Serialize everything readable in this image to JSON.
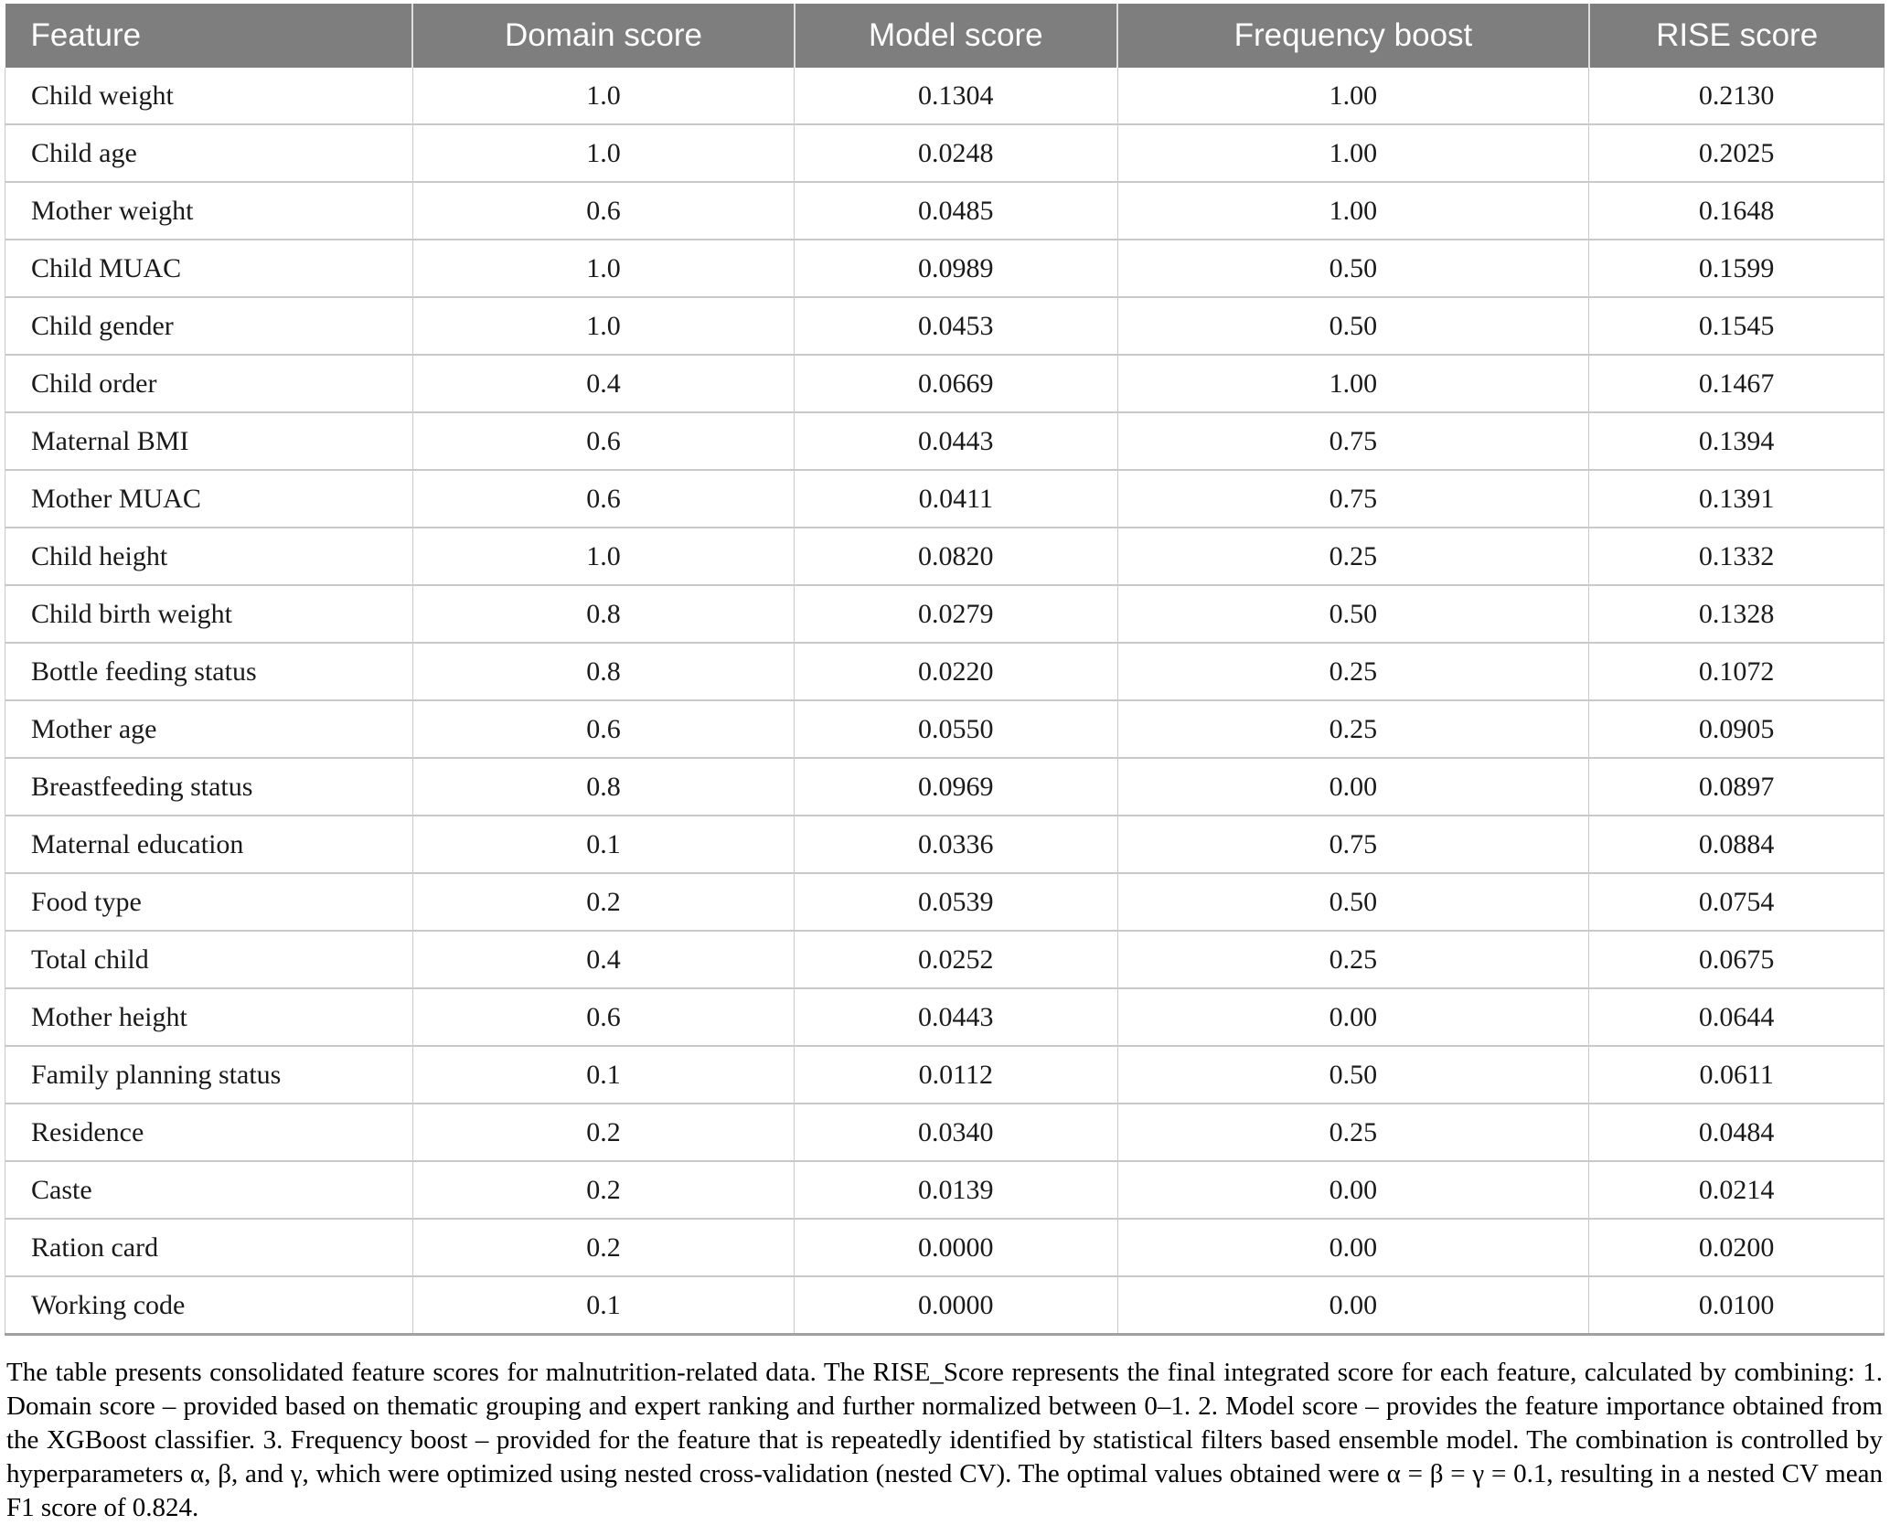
{
  "table": {
    "columns": [
      {
        "label": "Feature",
        "align": "left"
      },
      {
        "label": "Domain score",
        "align": "center"
      },
      {
        "label": "Model score",
        "align": "center"
      },
      {
        "label": "Frequency boost",
        "align": "center"
      },
      {
        "label": "RISE score",
        "align": "center"
      }
    ],
    "rows": [
      {
        "feature": "Child weight",
        "domain_score": "1.0",
        "model_score": "0.1304",
        "frequency_boost": "1.00",
        "rise_score": "0.2130"
      },
      {
        "feature": "Child age",
        "domain_score": "1.0",
        "model_score": "0.0248",
        "frequency_boost": "1.00",
        "rise_score": "0.2025"
      },
      {
        "feature": "Mother weight",
        "domain_score": "0.6",
        "model_score": "0.0485",
        "frequency_boost": "1.00",
        "rise_score": "0.1648"
      },
      {
        "feature": "Child MUAC",
        "domain_score": "1.0",
        "model_score": "0.0989",
        "frequency_boost": "0.50",
        "rise_score": "0.1599"
      },
      {
        "feature": "Child gender",
        "domain_score": "1.0",
        "model_score": "0.0453",
        "frequency_boost": "0.50",
        "rise_score": "0.1545"
      },
      {
        "feature": "Child order",
        "domain_score": "0.4",
        "model_score": "0.0669",
        "frequency_boost": "1.00",
        "rise_score": "0.1467"
      },
      {
        "feature": "Maternal BMI",
        "domain_score": "0.6",
        "model_score": "0.0443",
        "frequency_boost": "0.75",
        "rise_score": "0.1394"
      },
      {
        "feature": "Mother MUAC",
        "domain_score": "0.6",
        "model_score": "0.0411",
        "frequency_boost": "0.75",
        "rise_score": "0.1391"
      },
      {
        "feature": "Child height",
        "domain_score": "1.0",
        "model_score": "0.0820",
        "frequency_boost": "0.25",
        "rise_score": "0.1332"
      },
      {
        "feature": "Child birth weight",
        "domain_score": "0.8",
        "model_score": "0.0279",
        "frequency_boost": "0.50",
        "rise_score": "0.1328"
      },
      {
        "feature": "Bottle feeding status",
        "domain_score": "0.8",
        "model_score": "0.0220",
        "frequency_boost": "0.25",
        "rise_score": "0.1072"
      },
      {
        "feature": "Mother age",
        "domain_score": "0.6",
        "model_score": "0.0550",
        "frequency_boost": "0.25",
        "rise_score": "0.0905"
      },
      {
        "feature": "Breastfeeding status",
        "domain_score": "0.8",
        "model_score": "0.0969",
        "frequency_boost": "0.00",
        "rise_score": "0.0897"
      },
      {
        "feature": "Maternal education",
        "domain_score": "0.1",
        "model_score": "0.0336",
        "frequency_boost": "0.75",
        "rise_score": "0.0884"
      },
      {
        "feature": "Food type",
        "domain_score": "0.2",
        "model_score": "0.0539",
        "frequency_boost": "0.50",
        "rise_score": "0.0754"
      },
      {
        "feature": "Total child",
        "domain_score": "0.4",
        "model_score": "0.0252",
        "frequency_boost": "0.25",
        "rise_score": "0.0675"
      },
      {
        "feature": "Mother height",
        "domain_score": "0.6",
        "model_score": "0.0443",
        "frequency_boost": "0.00",
        "rise_score": "0.0644"
      },
      {
        "feature": "Family planning status",
        "domain_score": "0.1",
        "model_score": "0.0112",
        "frequency_boost": "0.50",
        "rise_score": "0.0611"
      },
      {
        "feature": "Residence",
        "domain_score": "0.2",
        "model_score": "0.0340",
        "frequency_boost": "0.25",
        "rise_score": "0.0484"
      },
      {
        "feature": "Caste",
        "domain_score": "0.2",
        "model_score": "0.0139",
        "frequency_boost": "0.00",
        "rise_score": "0.0214"
      },
      {
        "feature": "Ration card",
        "domain_score": "0.2",
        "model_score": "0.0000",
        "frequency_boost": "0.00",
        "rise_score": "0.0200"
      },
      {
        "feature": "Working code",
        "domain_score": "0.1",
        "model_score": "0.0000",
        "frequency_boost": "0.00",
        "rise_score": "0.0100"
      }
    ]
  },
  "caption": "The table presents consolidated feature scores for malnutrition-related data. The RISE_Score represents the final integrated score for each feature, calculated by combining: 1. Domain score – provided based on thematic grouping and expert ranking and further normalized between 0–1. 2. Model score – provides the feature importance obtained from the XGBoost classifier. 3. Frequency boost – provided for the feature that is repeatedly identified by statistical filters based ensemble model. The combination is controlled by hyperparameters α, β, and γ, which were optimized using nested cross-validation (nested CV). The optimal values obtained were α = β = γ = 0.1, resulting in a nested CV mean F1 score of 0.824.",
  "colors": {
    "header_bg": "#7e7e7e",
    "header_text": "#ffffff",
    "row_border": "#c9c9c9",
    "body_text": "#1a1a1a"
  }
}
